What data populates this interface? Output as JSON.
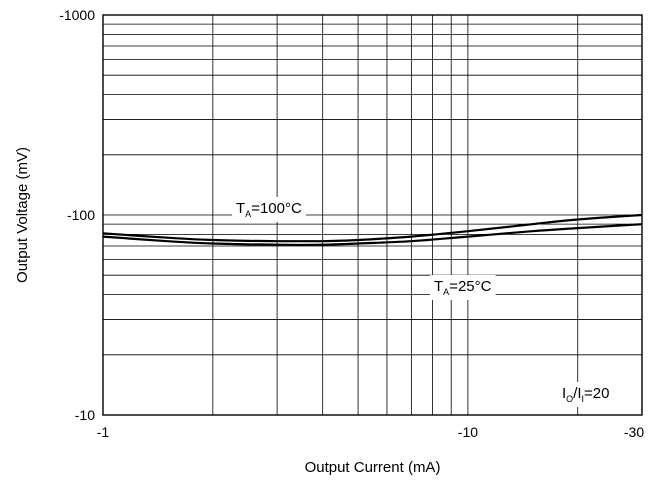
{
  "chart_data": {
    "type": "line",
    "xlabel": "Output Current (mA)",
    "ylabel": "Output Voltage (mV)",
    "x_scale": "log",
    "y_scale": "log",
    "xlim": [
      -1,
      -30
    ],
    "ylim": [
      -10,
      -1000
    ],
    "x_ticks": [
      "-1",
      "-10",
      "-30"
    ],
    "y_ticks": [
      "-1000",
      "-100",
      "-10"
    ],
    "grid": true,
    "series": [
      {
        "name": "TA=100°C",
        "x": [
          -1,
          -1.5,
          -2,
          -3,
          -4,
          -5,
          -7,
          -10,
          -15,
          -20,
          -30
        ],
        "y": [
          -81,
          -77,
          -75,
          -74,
          -74,
          -75,
          -78,
          -83,
          -90,
          -95,
          -100
        ]
      },
      {
        "name": "TA=25°C",
        "x": [
          -1,
          -1.5,
          -2,
          -3,
          -4,
          -5,
          -7,
          -10,
          -15,
          -20,
          -30
        ],
        "y": [
          -78,
          -74,
          -72,
          -71,
          -71,
          -72,
          -74,
          -78,
          -83,
          -86,
          -90
        ]
      }
    ],
    "annotations": [
      {
        "main": "T",
        "sub": "A",
        "rest": "=100°C"
      },
      {
        "main": "T",
        "sub": "A",
        "rest": "=25°C"
      },
      {
        "main": "I",
        "sub": "O",
        "sep": "/I",
        "sub2": "I",
        "rest": "=20"
      }
    ]
  }
}
